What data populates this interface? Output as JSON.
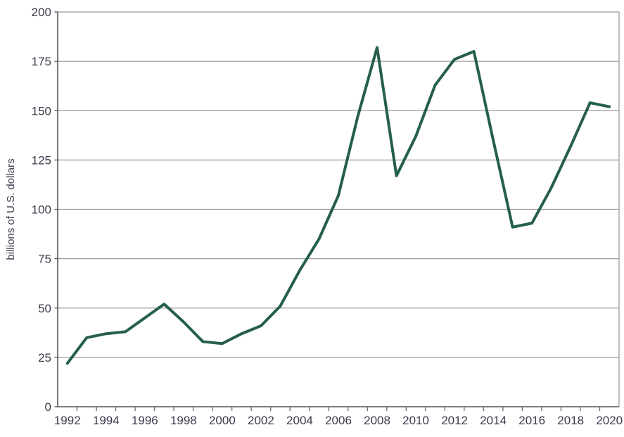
{
  "chart_data": {
    "type": "line",
    "title": "",
    "xlabel": "",
    "ylabel": "billions of U.S. dollars",
    "x": [
      1992,
      1993,
      1994,
      1995,
      1996,
      1997,
      1998,
      1999,
      2000,
      2001,
      2002,
      2003,
      2004,
      2005,
      2006,
      2007,
      2008,
      2009,
      2010,
      2011,
      2012,
      2013,
      2014,
      2015,
      2016,
      2017,
      2018,
      2019,
      2020
    ],
    "series": [
      {
        "name": "billions of U.S. dollars",
        "values": [
          22,
          35,
          37,
          38,
          45,
          52,
          43,
          33,
          32,
          37,
          41,
          51,
          69,
          85,
          107,
          147,
          182,
          117,
          137,
          163,
          176,
          180,
          135,
          91,
          93,
          111,
          132,
          154,
          152
        ]
      }
    ],
    "ylim": [
      0,
      200
    ],
    "yticks": [
      0,
      25,
      50,
      75,
      100,
      125,
      150,
      175,
      200
    ],
    "xtick_labels": [
      "1992",
      "1994",
      "1996",
      "1998",
      "2000",
      "2002",
      "2004",
      "2006",
      "2008",
      "2010",
      "2012",
      "2014",
      "2016",
      "2018",
      "2020"
    ],
    "xtick_label_years": [
      1992,
      1994,
      1996,
      1998,
      2000,
      2002,
      2004,
      2006,
      2008,
      2010,
      2012,
      2014,
      2016,
      2018,
      2020
    ],
    "grid": "horizontal gridlines every 25, on",
    "minor_x_ticks": "one tick per year at category boundaries, labels centered between ticks",
    "legend": "none"
  },
  "colors": {
    "background": "#ffffff",
    "line": "#265e4e",
    "grid": "#9b9b9b",
    "axis": "#55555c",
    "tick": "#6a6a70",
    "text": "#3b3b4d"
  }
}
